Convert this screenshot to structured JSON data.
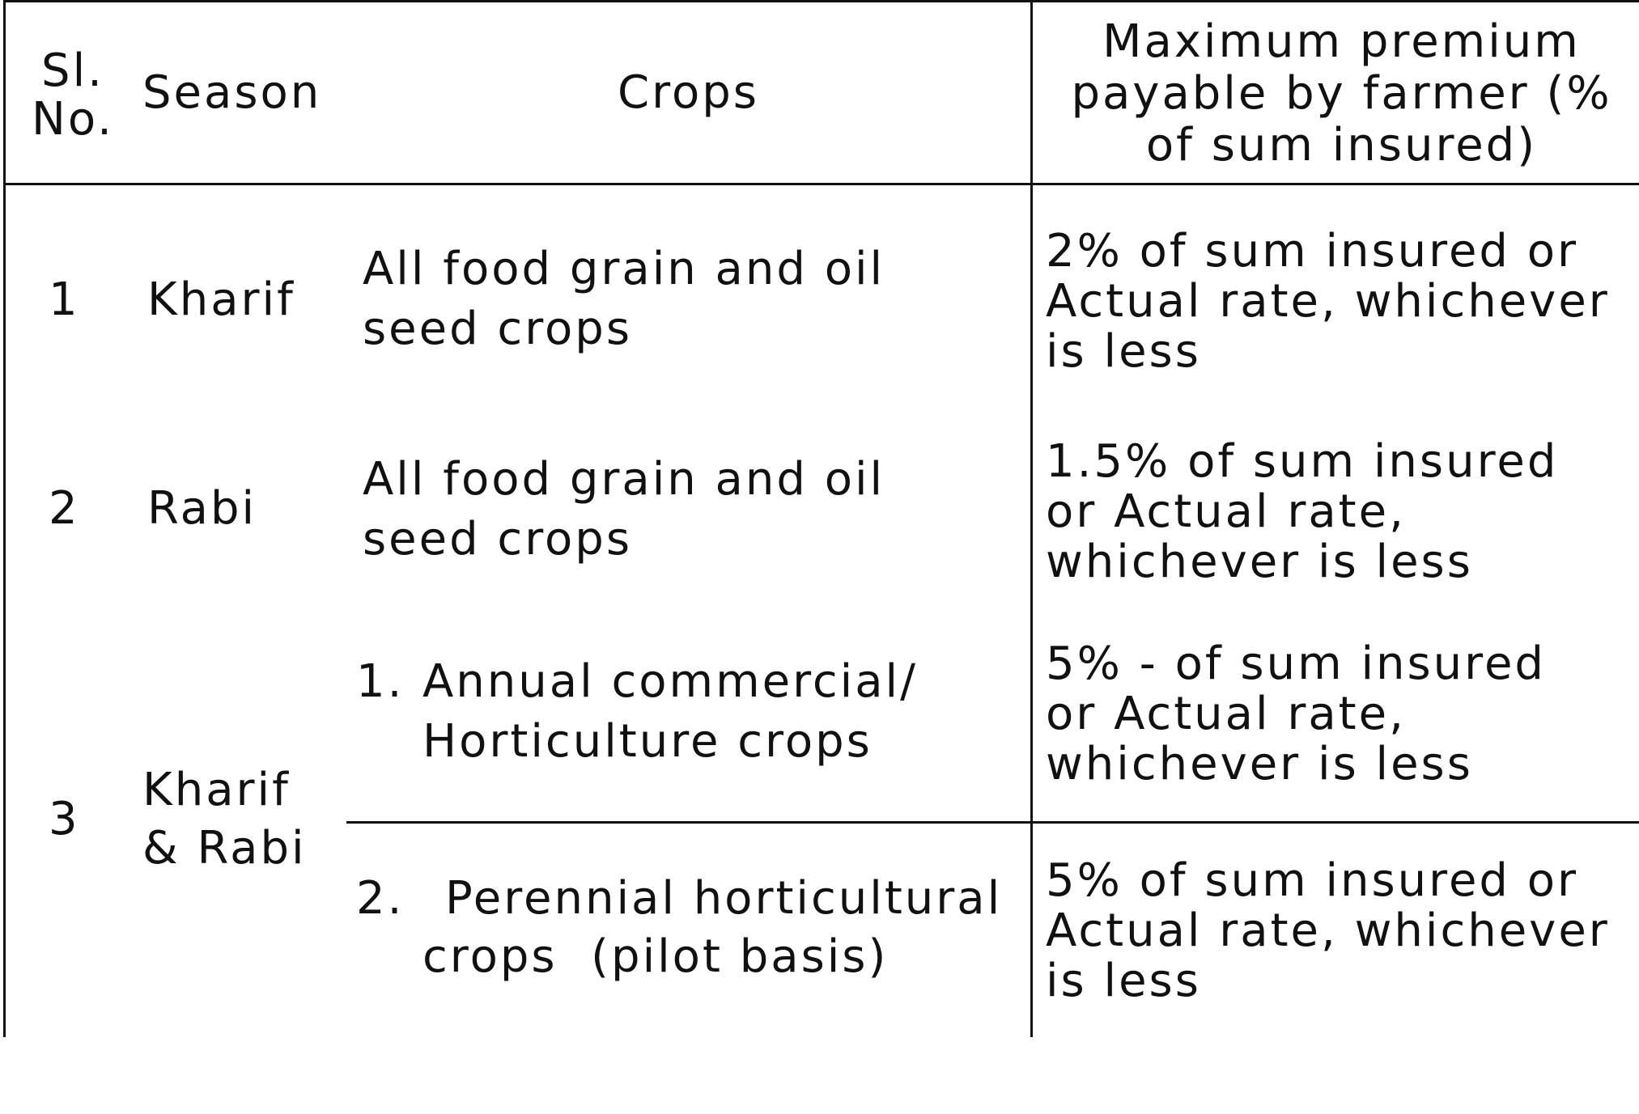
{
  "table": {
    "headers": {
      "sl_no": "Sl. No.",
      "season": "Season",
      "crops": "Crops",
      "premium": "Maximum premium payable by farmer (% of sum insured)"
    },
    "rows": [
      {
        "sl_no": "1",
        "season": "Kharif",
        "crops": [
          "All food grain and oil",
          "seed crops"
        ],
        "premium": [
          "2% of sum insured or",
          "Actual rate, whichever",
          "is less"
        ]
      },
      {
        "sl_no": "2",
        "season": "Rabi",
        "crops": [
          "All food grain and oil",
          "seed crops"
        ],
        "premium": [
          "1.5% of sum insured",
          "or Actual rate,",
          "whichever is less"
        ]
      },
      {
        "sl_no": "3",
        "season": [
          "Kharif",
          "& Rabi"
        ],
        "sub_rows": [
          {
            "crops_number": "1.",
            "crops": [
              "Annual commercial/",
              "Horticulture crops"
            ],
            "premium": [
              "5% - of sum insured",
              "or Actual rate,",
              "whichever is less"
            ]
          },
          {
            "crops_number": "2.",
            "crops": [
              "Perennial horticultural",
              "crops  (pilot basis)"
            ],
            "premium": [
              "5% of sum insured or",
              "Actual rate, whichever",
              "is less"
            ]
          }
        ]
      }
    ]
  }
}
